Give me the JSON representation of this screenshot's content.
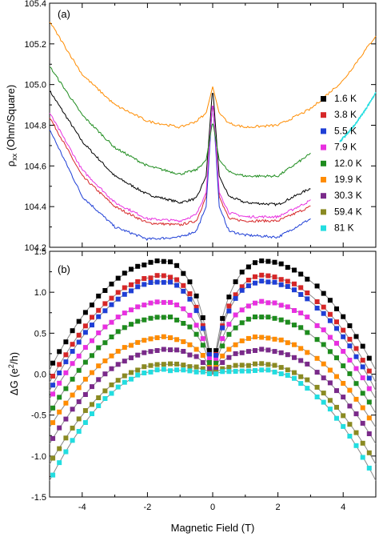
{
  "chart_data": [
    {
      "type": "line",
      "panel_label": "(a)",
      "ylabel": "ρxx (Ohm/Square)",
      "ylabel_main": "ρ",
      "ylabel_sub": "xx",
      "ylabel_rest": " (Ohm/Square)",
      "xlim": [
        -5,
        5
      ],
      "ylim": [
        104.2,
        105.4
      ],
      "yticks": [
        "104.2",
        "104.4",
        "104.6",
        "104.8",
        "105.0",
        "105.2",
        "105.4"
      ],
      "ytick_values": [
        104.2,
        104.4,
        104.6,
        104.8,
        105.0,
        105.2,
        105.4
      ],
      "series": [
        {
          "name": "1.6 K",
          "color": "#000000",
          "x": [
            -5,
            -4,
            -3,
            -2,
            -1,
            -0.5,
            -0.2,
            0,
            0.2,
            0.5,
            1,
            2,
            3
          ],
          "y": [
            104.97,
            104.72,
            104.55,
            104.46,
            104.42,
            104.44,
            104.55,
            104.99,
            104.55,
            104.45,
            104.42,
            104.41,
            104.49
          ]
        },
        {
          "name": "3.8 K",
          "color": "#d62728",
          "x": [
            -5,
            -4,
            -3,
            -2,
            -1,
            -0.5,
            -0.2,
            0,
            0.2,
            0.5,
            1,
            2,
            3
          ],
          "y": [
            104.84,
            104.55,
            104.4,
            104.32,
            104.31,
            104.33,
            104.45,
            104.92,
            104.45,
            104.34,
            104.33,
            104.33,
            104.4
          ]
        },
        {
          "name": "5.5 K",
          "color": "#1f3fd6",
          "x": [
            -5,
            -4,
            -3,
            -2,
            -1,
            -0.5,
            -0.2,
            0,
            0.2,
            0.5,
            1,
            2,
            3
          ],
          "y": [
            104.78,
            104.45,
            104.3,
            104.24,
            104.25,
            104.28,
            104.4,
            104.93,
            104.4,
            104.28,
            104.26,
            104.25,
            104.34
          ]
        },
        {
          "name": "7.9 K",
          "color": "#e830e0",
          "x": [
            -5,
            -4,
            -3,
            -2,
            -1,
            -0.5,
            -0.2,
            0,
            0.2,
            0.5,
            1,
            2,
            3
          ],
          "y": [
            104.86,
            104.58,
            104.42,
            104.34,
            104.33,
            104.36,
            104.47,
            104.93,
            104.47,
            104.37,
            104.35,
            104.35,
            104.43
          ]
        },
        {
          "name": "12.0 K",
          "color": "#1e8c1e",
          "x": [
            -5,
            -4,
            -3,
            -2,
            -1,
            -0.5,
            -0.2,
            0,
            0.2,
            0.5,
            1,
            2,
            3
          ],
          "y": [
            105.09,
            104.85,
            104.69,
            104.6,
            104.56,
            104.58,
            104.63,
            104.82,
            104.63,
            104.57,
            104.55,
            104.55,
            104.66
          ]
        },
        {
          "name": "19.9 K",
          "color": "#ff8c00",
          "x": [
            -5,
            -4,
            -3,
            -2,
            -1,
            -0.5,
            -0.2,
            0,
            0.2,
            0.5,
            1,
            2,
            3,
            4,
            4.5,
            5
          ],
          "y": [
            105.31,
            105.05,
            104.9,
            104.82,
            104.79,
            104.82,
            104.86,
            104.99,
            104.86,
            104.81,
            104.79,
            104.8,
            104.88,
            105.02,
            105.13,
            105.24
          ]
        },
        {
          "name": "30.3 K",
          "color": "#7a2a8a",
          "x": [],
          "y": []
        },
        {
          "name": "59.4 K",
          "color": "#8a8a22",
          "x": [],
          "y": []
        },
        {
          "name": "81 K",
          "color": "#22dde0",
          "x": [
            3.9,
            4.3,
            4.7,
            5
          ],
          "y": [
            104.72,
            104.79,
            104.88,
            104.96
          ]
        }
      ]
    },
    {
      "type": "scatter",
      "panel_label": "(b)",
      "xlabel": "Magnetic Field (T)",
      "ylabel": "ΔG (e²/h)",
      "ylabel_main": "ΔG (e",
      "ylabel_sup": "2",
      "ylabel_rest": "/h)",
      "xlim": [
        -5,
        5
      ],
      "ylim": [
        -1.5,
        1.5
      ],
      "xticks": [
        "-4",
        "-2",
        "0",
        "2",
        "4"
      ],
      "xtick_values": [
        -4,
        -2,
        0,
        2,
        4
      ],
      "yticks": [
        "-1.5",
        "-1.0",
        "-0.5",
        "0.0",
        "0.5",
        "1.0",
        "1.5"
      ],
      "ytick_values": [
        -1.5,
        -1.0,
        -0.5,
        0.0,
        0.5,
        1.0,
        1.5
      ],
      "series": [
        {
          "name": "1.6 K",
          "color": "#000000",
          "peak": 1.38,
          "edge": 0.05
        },
        {
          "name": "3.8 K",
          "color": "#d62728",
          "peak": 1.2,
          "edge": -0.1
        },
        {
          "name": "5.5 K",
          "color": "#1f3fd6",
          "peak": 1.13,
          "edge": -0.2
        },
        {
          "name": "7.9 K",
          "color": "#e830e0",
          "peak": 0.88,
          "edge": -0.3
        },
        {
          "name": "12.0 K",
          "color": "#1e8c1e",
          "peak": 0.7,
          "edge": -0.48
        },
        {
          "name": "19.9 K",
          "color": "#ff8c00",
          "peak": 0.45,
          "edge": -0.65
        },
        {
          "name": "30.3 K",
          "color": "#7a2a8a",
          "peak": 0.3,
          "edge": -0.85
        },
        {
          "name": "59.4 K",
          "color": "#8a8a22",
          "peak": 0.12,
          "edge": -1.1
        },
        {
          "name": "81 K",
          "color": "#22dde0",
          "peak": 0.05,
          "edge": -1.3
        }
      ]
    }
  ],
  "legend": {
    "placement": "right",
    "items": [
      {
        "name": "1.6 K",
        "color": "#000000"
      },
      {
        "name": "3.8 K",
        "color": "#d62728"
      },
      {
        "name": "5.5 K",
        "color": "#1f3fd6"
      },
      {
        "name": "7.9 K",
        "color": "#e830e0"
      },
      {
        "name": "12.0 K",
        "color": "#1e8c1e"
      },
      {
        "name": "19.9 K",
        "color": "#ff8c00"
      },
      {
        "name": "30.3 K",
        "color": "#7a2a8a"
      },
      {
        "name": "59.4 K",
        "color": "#8a8a22"
      },
      {
        "name": "81 K",
        "color": "#22dde0"
      }
    ]
  }
}
